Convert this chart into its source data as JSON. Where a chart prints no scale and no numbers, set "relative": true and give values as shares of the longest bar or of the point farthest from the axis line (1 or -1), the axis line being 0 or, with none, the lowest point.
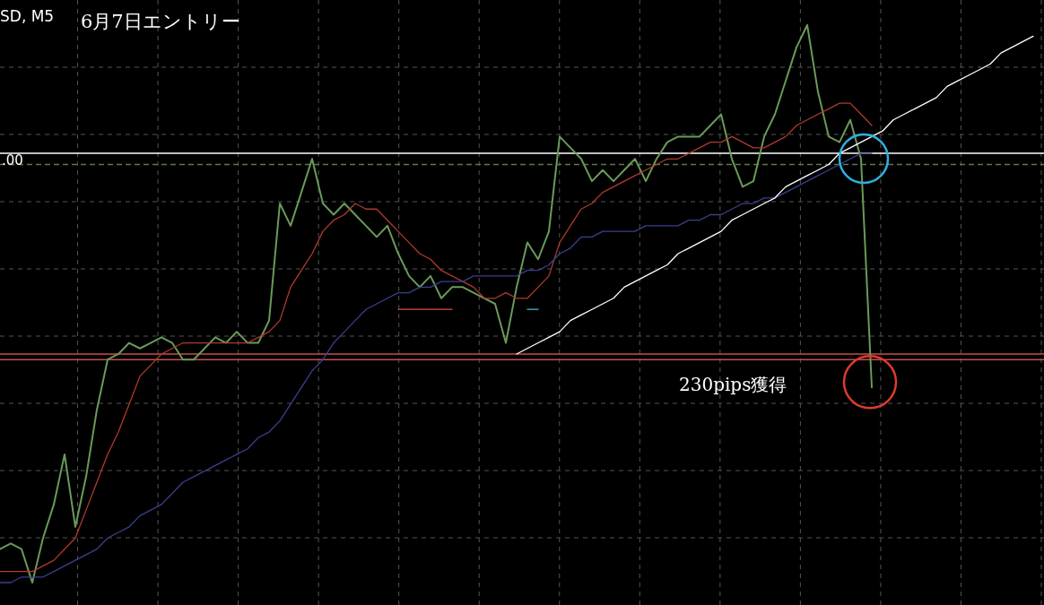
{
  "chart_data": {
    "type": "line",
    "title": "6月7日エントリー",
    "relative": true,
    "grid": true,
    "line_style": "solid",
    "marker": "none",
    "annotations": [
      "SD, M5",
      "230pips獲得",
      ".00"
    ],
    "categories": [
      null,
      null,
      null,
      null,
      null,
      null,
      null,
      null,
      null,
      null,
      null,
      null,
      null,
      null,
      null,
      null,
      null,
      null,
      null,
      null,
      null,
      null,
      null,
      null,
      null,
      null,
      null,
      null,
      null,
      null,
      null,
      null,
      null,
      null,
      null,
      null,
      null,
      null,
      null,
      null,
      null,
      null,
      null,
      null,
      null,
      null,
      null,
      null,
      null,
      null,
      null,
      null,
      null,
      null,
      null,
      null,
      null,
      null,
      null,
      null,
      null,
      null,
      null,
      null,
      null,
      null,
      null,
      null,
      null,
      null,
      null,
      null,
      null,
      null,
      null,
      null,
      null,
      null,
      null,
      null,
      null,
      null,
      null,
      null,
      null,
      null,
      null,
      null,
      null,
      null,
      null,
      null,
      null,
      null,
      null,
      null,
      null
    ],
    "series": [
      {
        "color": "#6a9a5a",
        "values": [
          0.06,
          0.07,
          0.06,
          0.0,
          0.08,
          0.14,
          0.23,
          0.1,
          0.19,
          0.31,
          0.4,
          0.41,
          0.43,
          0.42,
          0.43,
          0.44,
          0.43,
          0.4,
          0.4,
          0.42,
          0.44,
          0.43,
          0.45,
          0.43,
          0.43,
          0.47,
          0.68,
          0.64,
          0.7,
          0.76,
          0.68,
          0.66,
          0.68,
          0.66,
          0.64,
          0.62,
          0.64,
          0.59,
          0.55,
          0.53,
          0.55,
          0.51,
          0.53,
          0.53,
          0.52,
          0.51,
          0.5,
          0.43,
          0.53,
          0.61,
          0.58,
          0.63,
          0.8,
          0.78,
          0.76,
          0.72,
          0.74,
          0.72,
          0.74,
          0.76,
          0.72,
          0.76,
          0.79,
          0.8,
          0.8,
          0.8,
          0.82,
          0.84,
          0.76,
          0.71,
          0.72,
          0.8,
          0.84,
          0.9,
          0.96,
          1.0,
          0.88,
          0.8,
          0.79,
          0.83,
          0.76,
          0.35,
          null,
          null,
          null,
          null,
          null,
          null,
          null,
          null,
          null,
          null,
          null,
          null,
          null,
          null,
          null
        ]
      },
      {
        "color": "#b03a2e",
        "values": [
          0.02,
          0.02,
          0.02,
          0.02,
          0.03,
          0.04,
          0.06,
          0.08,
          0.13,
          0.18,
          0.23,
          0.27,
          0.32,
          0.37,
          0.39,
          0.41,
          0.42,
          0.43,
          0.43,
          0.43,
          0.43,
          0.43,
          0.43,
          0.43,
          0.44,
          0.45,
          0.47,
          0.53,
          0.56,
          0.59,
          0.63,
          0.65,
          0.66,
          0.68,
          0.67,
          0.67,
          0.65,
          0.63,
          0.61,
          0.59,
          0.58,
          0.56,
          0.55,
          0.54,
          0.53,
          0.51,
          0.51,
          0.52,
          0.51,
          0.51,
          0.53,
          0.55,
          0.61,
          0.64,
          0.67,
          0.68,
          0.7,
          0.71,
          0.72,
          0.73,
          0.74,
          0.75,
          0.76,
          0.76,
          0.77,
          0.78,
          0.79,
          0.79,
          0.8,
          0.79,
          0.78,
          0.78,
          0.79,
          0.8,
          0.82,
          0.83,
          0.84,
          0.85,
          0.86,
          0.86,
          0.84,
          0.82,
          null,
          null,
          null,
          null,
          null,
          null,
          null,
          null,
          null,
          null,
          null,
          null,
          null,
          null,
          null
        ]
      },
      {
        "color": "#3a3f8f",
        "values": [
          0.0,
          0.0,
          0.01,
          0.01,
          0.01,
          0.02,
          0.03,
          0.04,
          0.05,
          0.06,
          0.08,
          0.09,
          0.1,
          0.12,
          0.13,
          0.14,
          0.16,
          0.18,
          0.19,
          0.2,
          0.21,
          0.22,
          0.23,
          0.24,
          0.26,
          0.27,
          0.29,
          0.32,
          0.35,
          0.38,
          0.4,
          0.43,
          0.45,
          0.47,
          0.49,
          0.5,
          0.51,
          0.52,
          0.52,
          0.53,
          0.53,
          0.54,
          0.54,
          0.54,
          0.55,
          0.55,
          0.55,
          0.55,
          0.55,
          0.56,
          0.56,
          0.57,
          0.59,
          0.6,
          0.62,
          0.62,
          0.63,
          0.63,
          0.63,
          0.63,
          0.64,
          0.64,
          0.64,
          0.64,
          0.65,
          0.65,
          0.66,
          0.66,
          0.67,
          0.68,
          0.68,
          0.69,
          0.69,
          0.7,
          0.71,
          0.72,
          0.73,
          0.74,
          0.75,
          0.76,
          0.77,
          0.77,
          null,
          null,
          null,
          null,
          null,
          null,
          null,
          null,
          null,
          null,
          null,
          null,
          null,
          null,
          null
        ]
      },
      {
        "color": "#ffffff",
        "values": [
          null,
          null,
          null,
          null,
          null,
          null,
          null,
          null,
          null,
          null,
          null,
          null,
          null,
          null,
          null,
          null,
          null,
          null,
          null,
          null,
          null,
          null,
          null,
          null,
          null,
          null,
          null,
          null,
          null,
          null,
          null,
          null,
          null,
          null,
          null,
          null,
          null,
          null,
          null,
          null,
          null,
          null,
          null,
          null,
          null,
          null,
          null,
          null,
          0.41,
          0.42,
          0.43,
          0.44,
          0.45,
          0.47,
          0.48,
          0.49,
          0.5,
          0.51,
          0.53,
          0.54,
          0.55,
          0.56,
          0.57,
          0.59,
          0.6,
          0.61,
          0.62,
          0.63,
          0.65,
          0.66,
          0.67,
          0.68,
          0.69,
          0.71,
          0.72,
          0.73,
          0.74,
          0.75,
          0.77,
          0.78,
          0.79,
          0.8,
          0.81,
          0.83,
          0.84,
          0.85,
          0.86,
          0.87,
          0.89,
          0.9,
          0.91,
          0.92,
          0.93,
          0.95,
          0.96,
          0.97,
          0.98
        ]
      },
      {
        "color": "#e0503a",
        "values": [
          null,
          null,
          null,
          null,
          null,
          null,
          null,
          null,
          null,
          null,
          null,
          null,
          null,
          null,
          null,
          null,
          null,
          null,
          null,
          null,
          null,
          null,
          null,
          null,
          null,
          null,
          null,
          null,
          null,
          null,
          null,
          null,
          null,
          null,
          null,
          null,
          null,
          0.49,
          0.49,
          0.49,
          0.49,
          0.49,
          0.49,
          null,
          null,
          null,
          null,
          null,
          null,
          null,
          null,
          null,
          null,
          null,
          null,
          null,
          null,
          null,
          null,
          null,
          null,
          null,
          null,
          null,
          null,
          null,
          null,
          null,
          null,
          null,
          null,
          null,
          null,
          null,
          null,
          null,
          null,
          null,
          null,
          null,
          null,
          null,
          null,
          null,
          null,
          null,
          null,
          null,
          null,
          null,
          null,
          null,
          null,
          null,
          null,
          null,
          null
        ]
      },
      {
        "color": "#40c0d0",
        "values": [
          null,
          null,
          null,
          null,
          null,
          null,
          null,
          null,
          null,
          null,
          null,
          null,
          null,
          null,
          null,
          null,
          null,
          null,
          null,
          null,
          null,
          null,
          null,
          null,
          null,
          null,
          null,
          null,
          null,
          null,
          null,
          null,
          null,
          null,
          null,
          null,
          null,
          null,
          null,
          null,
          null,
          null,
          null,
          null,
          null,
          null,
          null,
          null,
          null,
          0.49,
          0.49,
          null,
          null,
          null,
          null,
          null,
          null,
          null,
          null,
          null,
          null,
          null,
          null,
          null,
          null,
          null,
          null,
          null,
          null,
          null,
          null,
          null,
          null,
          null,
          null,
          null,
          null,
          null,
          null,
          null,
          null,
          null,
          null,
          null,
          null,
          null,
          null,
          null,
          null,
          null,
          null,
          null,
          null,
          null,
          null,
          null,
          null
        ]
      }
    ],
    "ref_lines": [
      {
        "axis": "y",
        "value": 0.77,
        "color": "#ffffff",
        "line_style": "solid"
      },
      {
        "axis": "y",
        "value": 0.75,
        "color": "#5a7a4a",
        "line_style": "dashed"
      },
      {
        "axis": "y",
        "value": 0.41,
        "color": "#c0504d",
        "line_style": "solid"
      },
      {
        "axis": "y",
        "value": 0.4,
        "color": "#c0504d",
        "line_style": "solid"
      }
    ]
  }
}
